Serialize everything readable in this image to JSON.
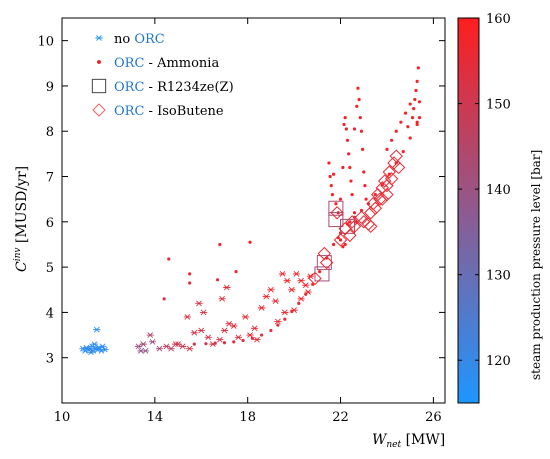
{
  "chart_data": {
    "type": "scatter",
    "xlabel": {
      "main": "W",
      "sub": "net",
      "unit": " [MW]"
    },
    "ylabel": {
      "main": "C",
      "sup": "inv",
      "unit": " [MUSD/yr]"
    },
    "xlim": [
      10,
      26.5
    ],
    "ylim": [
      2,
      10.5
    ],
    "xticks": [
      "10",
      "14",
      "18",
      "22",
      "26"
    ],
    "yticks": [
      "3",
      "4",
      "5",
      "6",
      "7",
      "8",
      "9",
      "10"
    ],
    "grid": false,
    "legend_position": "top-left",
    "colorbar": {
      "title": "steam production pressure level [bar]",
      "range": [
        115,
        160
      ],
      "ticks": [
        "120",
        "130",
        "140",
        "150",
        "160"
      ],
      "low_color": "#1e96ff",
      "high_color": "#ff1e1e"
    },
    "series": [
      {
        "marker": "asterisk",
        "legend": {
          "plain": "no ",
          "orc": "ORC",
          "rest": ""
        },
        "points": [
          [
            10.9,
            3.2
          ],
          [
            11.0,
            3.15
          ],
          [
            11.05,
            3.22
          ],
          [
            11.15,
            3.18
          ],
          [
            11.2,
            3.2
          ],
          [
            11.3,
            3.25
          ],
          [
            11.35,
            3.15
          ],
          [
            11.45,
            3.2
          ],
          [
            11.5,
            3.62
          ],
          [
            11.55,
            3.18
          ],
          [
            11.6,
            3.22
          ],
          [
            11.7,
            3.15
          ],
          [
            11.75,
            3.25
          ],
          [
            11.85,
            3.18
          ],
          [
            11.4,
            3.3
          ],
          [
            11.25,
            3.12
          ]
        ],
        "pressure": [
          118,
          118,
          118,
          118,
          118,
          118,
          118,
          118,
          118,
          118,
          118,
          118,
          118,
          118,
          118,
          118
        ]
      },
      {
        "marker": "dot",
        "legend": {
          "plain": "",
          "orc": "ORC",
          "rest": " - Ammonia"
        },
        "points": [
          [
            14.6,
            5.18
          ],
          [
            14.4,
            4.3
          ],
          [
            15.5,
            4.85
          ],
          [
            15.5,
            4.65
          ],
          [
            16.8,
            5.5
          ],
          [
            16.7,
            4.72
          ],
          [
            17.5,
            4.9
          ],
          [
            18.1,
            5.55
          ],
          [
            21.5,
            7.3
          ],
          [
            21.55,
            7.0
          ],
          [
            21.6,
            6.8
          ],
          [
            21.65,
            6.6
          ],
          [
            21.7,
            7.05
          ],
          [
            21.8,
            6.4
          ],
          [
            21.9,
            6.2
          ],
          [
            22.0,
            6.5
          ],
          [
            22.1,
            7.2
          ],
          [
            22.15,
            8.15
          ],
          [
            22.2,
            8.3
          ],
          [
            22.25,
            8.05
          ],
          [
            22.3,
            7.8
          ],
          [
            22.35,
            7.5
          ],
          [
            22.4,
            7.2
          ],
          [
            22.45,
            6.9
          ],
          [
            22.5,
            6.6
          ],
          [
            22.4,
            6.0
          ],
          [
            22.0,
            5.6
          ],
          [
            22.1,
            5.45
          ],
          [
            22.2,
            5.5
          ],
          [
            21.9,
            5.65
          ],
          [
            22.6,
            8.05
          ],
          [
            22.7,
            8.55
          ],
          [
            22.75,
            8.95
          ],
          [
            22.8,
            8.7
          ],
          [
            22.85,
            8.3
          ],
          [
            22.9,
            8.0
          ],
          [
            22.95,
            7.6
          ],
          [
            23.0,
            7.1
          ],
          [
            23.05,
            6.8
          ],
          [
            23.1,
            6.5
          ],
          [
            22.6,
            6.2
          ],
          [
            22.65,
            6.0
          ],
          [
            24.0,
            7.6
          ],
          [
            24.2,
            7.8
          ],
          [
            24.4,
            8.0
          ],
          [
            24.6,
            8.2
          ],
          [
            24.8,
            8.4
          ],
          [
            24.9,
            8.1
          ],
          [
            25.0,
            8.6
          ],
          [
            25.1,
            8.3
          ],
          [
            25.15,
            8.5
          ],
          [
            25.2,
            8.7
          ],
          [
            25.25,
            8.9
          ],
          [
            25.3,
            9.1
          ],
          [
            25.35,
            9.4
          ],
          [
            25.4,
            8.65
          ],
          [
            25.4,
            8.3
          ],
          [
            25.3,
            8.15
          ],
          [
            15.7,
            3.3
          ],
          [
            16.2,
            3.31
          ],
          [
            16.6,
            3.32
          ],
          [
            17.0,
            3.33
          ],
          [
            17.4,
            3.35
          ],
          [
            17.8,
            3.38
          ],
          [
            18.2,
            3.43
          ],
          [
            18.6,
            3.5
          ],
          [
            19.0,
            3.6
          ],
          [
            19.3,
            3.72
          ],
          [
            19.6,
            3.85
          ],
          [
            19.9,
            4.02
          ],
          [
            20.2,
            4.2
          ],
          [
            20.5,
            4.4
          ],
          [
            20.8,
            4.62
          ],
          [
            21.1,
            4.9
          ],
          [
            21.4,
            5.2
          ],
          [
            21.7,
            5.5
          ],
          [
            22.0,
            5.75
          ],
          [
            22.3,
            5.95
          ],
          [
            22.6,
            6.1
          ],
          [
            22.9,
            6.25
          ],
          [
            23.2,
            6.4
          ],
          [
            23.5,
            6.6
          ],
          [
            23.8,
            6.82
          ],
          [
            24.1,
            7.05
          ],
          [
            24.4,
            7.3
          ],
          [
            24.7,
            7.55
          ],
          [
            25.0,
            7.85
          ],
          [
            25.3,
            8.2
          ]
        ],
        "pressure": [
          155,
          152,
          156,
          153,
          157,
          154,
          156,
          158,
          158,
          158,
          158,
          158,
          158,
          158,
          158,
          158,
          158,
          158,
          158,
          158,
          158,
          158,
          158,
          158,
          158,
          158,
          158,
          158,
          158,
          158,
          158,
          158,
          158,
          158,
          158,
          158,
          158,
          158,
          158,
          158,
          158,
          158,
          158,
          158,
          158,
          158,
          158,
          158,
          158,
          158,
          158,
          158,
          158,
          158,
          158,
          158,
          158,
          158,
          150,
          150,
          151,
          151,
          152,
          152,
          153,
          153,
          154,
          154,
          155,
          155,
          156,
          156,
          157,
          157,
          157,
          158,
          158,
          158,
          158,
          158,
          158,
          158,
          158,
          158,
          158,
          158,
          158,
          158
        ]
      },
      {
        "marker": "square",
        "legend": {
          "plain": "",
          "orc": "ORC",
          "rest": " - R1234ze(Z)"
        },
        "points": [
          [
            21.8,
            6.3
          ],
          [
            21.8,
            6.05
          ],
          [
            22.3,
            5.9
          ],
          [
            21.3,
            5.1
          ],
          [
            21.2,
            4.85
          ]
        ],
        "pressure": [
          145,
          143,
          144,
          142,
          141
        ]
      },
      {
        "marker": "diamond",
        "legend": {
          "plain": "",
          "orc": "ORC",
          "rest": " - IsoButene"
        },
        "points": [
          [
            20.9,
            4.75
          ],
          [
            21.3,
            5.3
          ],
          [
            21.4,
            5.1
          ],
          [
            21.85,
            6.2
          ],
          [
            22.0,
            5.6
          ],
          [
            22.2,
            5.85
          ],
          [
            22.4,
            5.7
          ],
          [
            22.5,
            6.0
          ],
          [
            22.6,
            5.9
          ],
          [
            22.9,
            6.1
          ],
          [
            23.0,
            6.0
          ],
          [
            23.2,
            5.95
          ],
          [
            23.3,
            6.2
          ],
          [
            23.4,
            6.4
          ],
          [
            23.5,
            6.3
          ],
          [
            23.6,
            6.6
          ],
          [
            23.7,
            6.5
          ],
          [
            23.8,
            6.75
          ],
          [
            23.9,
            6.9
          ],
          [
            24.0,
            6.8
          ],
          [
            24.1,
            7.1
          ],
          [
            24.2,
            6.95
          ],
          [
            24.3,
            7.3
          ],
          [
            24.4,
            7.45
          ],
          [
            24.5,
            7.2
          ],
          [
            23.3,
            5.9
          ],
          [
            23.8,
            6.5
          ],
          [
            24.0,
            6.6
          ]
        ],
        "pressure": [
          158,
          156,
          157,
          155,
          156,
          157,
          156,
          155,
          156,
          155,
          156,
          157,
          155,
          156,
          157,
          156,
          155,
          157,
          156,
          155,
          156,
          157,
          156,
          155,
          156,
          157,
          156,
          155
        ]
      },
      {
        "marker": "asterisk",
        "legend": null,
        "points": [
          [
            13.3,
            3.25
          ],
          [
            13.5,
            3.3
          ],
          [
            13.6,
            3.15
          ],
          [
            13.8,
            3.5
          ],
          [
            13.9,
            3.35
          ],
          [
            14.2,
            3.2
          ],
          [
            14.5,
            3.25
          ],
          [
            14.7,
            3.2
          ],
          [
            15.0,
            3.3
          ],
          [
            15.2,
            3.25
          ],
          [
            15.5,
            3.2
          ],
          [
            15.7,
            3.55
          ],
          [
            15.9,
            4.2
          ],
          [
            16.1,
            4.0
          ],
          [
            16.3,
            3.45
          ],
          [
            16.5,
            3.3
          ],
          [
            16.8,
            3.4
          ],
          [
            17.0,
            3.6
          ],
          [
            17.2,
            3.75
          ],
          [
            17.4,
            3.7
          ],
          [
            17.6,
            3.45
          ],
          [
            17.9,
            3.9
          ],
          [
            18.1,
            3.5
          ],
          [
            18.3,
            3.65
          ],
          [
            18.6,
            4.1
          ],
          [
            18.8,
            4.35
          ],
          [
            19.0,
            4.5
          ],
          [
            19.2,
            4.25
          ],
          [
            19.5,
            4.85
          ],
          [
            19.7,
            4.7
          ],
          [
            19.9,
            4.5
          ],
          [
            20.1,
            4.85
          ],
          [
            20.3,
            4.7
          ],
          [
            20.5,
            4.6
          ],
          [
            20.7,
            4.8
          ],
          [
            19.6,
            4.0
          ],
          [
            20.0,
            4.05
          ],
          [
            20.3,
            4.3
          ],
          [
            16.9,
            4.3
          ],
          [
            17.1,
            4.55
          ],
          [
            15.4,
            3.9
          ],
          [
            16.0,
            3.6
          ],
          [
            18.4,
            3.4
          ],
          [
            19.3,
            3.8
          ],
          [
            20.6,
            4.45
          ],
          [
            14.9,
            3.3
          ],
          [
            13.4,
            3.15
          ]
        ],
        "pressure": [
          140,
          142,
          138,
          145,
          141,
          143,
          146,
          147,
          149,
          150,
          151,
          152,
          153,
          152,
          151,
          152,
          153,
          154,
          155,
          155,
          154,
          156,
          155,
          156,
          157,
          157,
          158,
          157,
          158,
          158,
          158,
          158,
          158,
          158,
          158,
          157,
          157,
          158,
          154,
          155,
          153,
          152,
          155,
          156,
          158,
          150,
          139
        ]
      }
    ]
  }
}
